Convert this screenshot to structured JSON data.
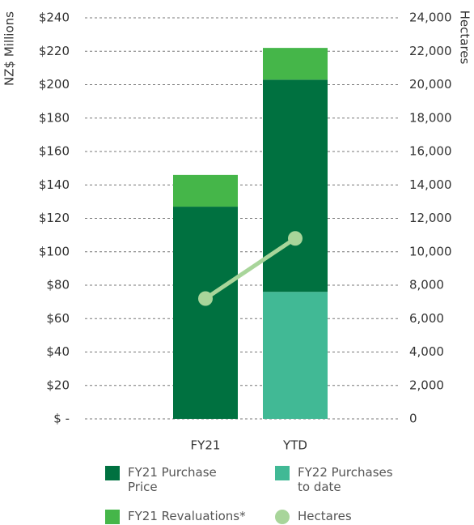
{
  "chart_data": {
    "type": "stacked-bar-line",
    "y_label": "NZ$ Millions",
    "y2_label": "Hectares",
    "categories": [
      "FY21",
      "YTD"
    ],
    "series": [
      {
        "name": "FY22 Purchases to date",
        "color": "#41b995",
        "values": [
          0,
          76
        ]
      },
      {
        "name": "FY21 Purchase Price",
        "color": "#007140",
        "values": [
          127,
          127
        ]
      },
      {
        "name": "FY21 Revaluations*",
        "color": "#45b649",
        "values": [
          19,
          19
        ]
      },
      {
        "name": "Hectares",
        "color": "#a8d59a",
        "axis": "y2",
        "line": true,
        "values": [
          7200,
          10800
        ]
      }
    ],
    "legend_order": [
      1,
      0,
      2,
      3
    ],
    "ylim": [
      0,
      240
    ],
    "yticks": [
      {
        "value": 0,
        "label": "$ -"
      },
      {
        "value": 20,
        "label": "$20"
      },
      {
        "value": 40,
        "label": "$40"
      },
      {
        "value": 60,
        "label": "$60"
      },
      {
        "value": 80,
        "label": "$80"
      },
      {
        "value": 100,
        "label": "$100"
      },
      {
        "value": 120,
        "label": "$120"
      },
      {
        "value": 140,
        "label": "$140"
      },
      {
        "value": 160,
        "label": "$160"
      },
      {
        "value": 180,
        "label": "$180"
      },
      {
        "value": 200,
        "label": "$200"
      },
      {
        "value": 220,
        "label": "$220"
      },
      {
        "value": 240,
        "label": "$240"
      }
    ],
    "y2lim": [
      0,
      24000
    ],
    "y2ticks": [
      0,
      {
        "value": 2000,
        "label": "2,000"
      },
      {
        "value": 4000,
        "label": "4,000"
      },
      {
        "value": 6000,
        "label": "6,000"
      },
      {
        "value": 8000,
        "label": "8,000"
      },
      {
        "value": 10000,
        "label": "10,000"
      },
      {
        "value": 12000,
        "label": "12,000"
      },
      {
        "value": 14000,
        "label": "14,000"
      },
      {
        "value": 16000,
        "label": "16,000"
      },
      {
        "value": 18000,
        "label": "18,000"
      },
      {
        "value": 20000,
        "label": "20,000"
      },
      {
        "value": 22000,
        "label": "22,000"
      },
      {
        "value": 24000,
        "label": "24,000"
      }
    ],
    "grid": true
  }
}
